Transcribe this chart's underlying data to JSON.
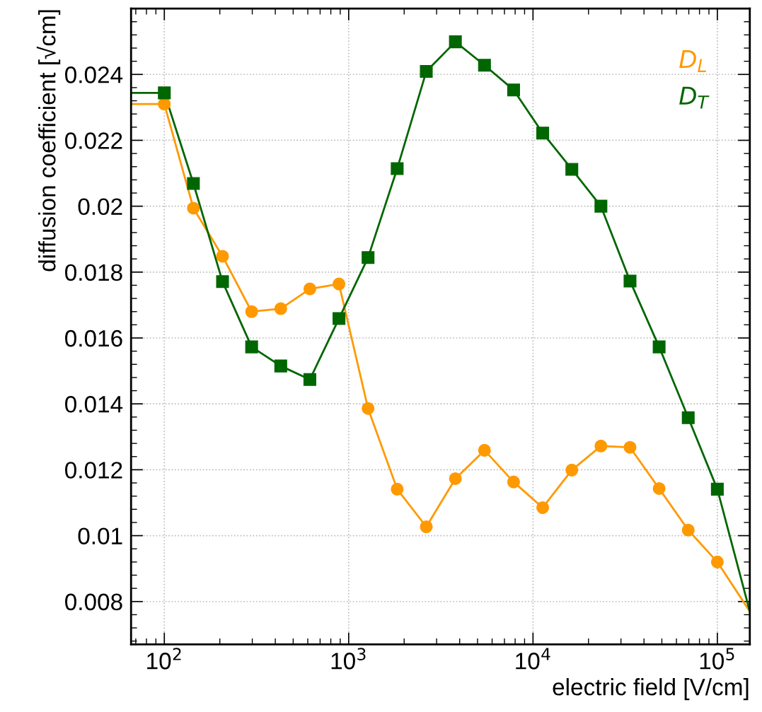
{
  "chart_data": {
    "type": "scatter",
    "xlabel": "electric field [V/cm]",
    "ylabel": "diffusion coefficient [√cm]",
    "log": "x",
    "grid": true,
    "legend": "top right",
    "xlim": [
      66,
      150000
    ],
    "ylim": [
      0.0067,
      0.026
    ],
    "xticks": [
      {
        "value": 100,
        "label": "10$^{2}$"
      },
      {
        "value": 1000,
        "label": "10$^{3}$"
      },
      {
        "value": 10000,
        "label": "10$^{4}$"
      },
      {
        "value": 100000,
        "label": "10$^{5}$"
      }
    ],
    "yticks": [
      0.008,
      0.01,
      0.012,
      0.014,
      0.016,
      0.018,
      0.02,
      0.022,
      0.024
    ],
    "x": [
      100,
      143.8,
      206.9,
      297.6,
      428.1,
      615.8,
      885.9,
      1274,
      1833,
      2637,
      3793,
      5456,
      7848,
      11288,
      16238,
      23357,
      33598,
      48329,
      69519,
      100000
    ],
    "series": [
      {
        "type": "line",
        "color": "#ff9900",
        "marker": "none",
        "x": [
          66,
          100,
          143.8,
          206.9,
          297.6,
          428.1,
          615.8,
          885.9,
          1274,
          1833,
          2637,
          3793,
          5456,
          7848,
          11288,
          16238,
          23357,
          33598,
          48329,
          69519,
          100000,
          150000
        ],
        "values": [
          0.0231,
          0.0231,
          0.01994,
          0.01848,
          0.0168,
          0.01689,
          0.01749,
          0.01764,
          0.01386,
          0.01141,
          0.01027,
          0.01173,
          0.01259,
          0.01163,
          0.01085,
          0.01199,
          0.01272,
          0.01268,
          0.01143,
          0.01017,
          0.0092,
          0.0077
        ]
      },
      {
        "type": "line",
        "color": "#006600",
        "marker": "none",
        "x": [
          66,
          100,
          143.8,
          206.9,
          297.6,
          428.1,
          615.8,
          885.9,
          1274,
          1833,
          2637,
          3793,
          5456,
          7848,
          11288,
          16238,
          23357,
          33598,
          48329,
          69519,
          100000,
          150000
        ],
        "values": [
          0.02344,
          0.02344,
          0.02069,
          0.01771,
          0.01573,
          0.01515,
          0.01474,
          0.01659,
          0.01844,
          0.02114,
          0.02409,
          0.02499,
          0.02428,
          0.02353,
          0.02222,
          0.02112,
          0.02,
          0.01773,
          0.01573,
          0.01358,
          0.01141,
          0.0077
        ]
      },
      {
        "name": "D$_{L}$",
        "color": "#ff9900",
        "marker": "circle",
        "values": [
          0.0231,
          0.01994,
          0.01848,
          0.0168,
          0.01689,
          0.01749,
          0.01764,
          0.01386,
          0.01141,
          0.01027,
          0.01173,
          0.01259,
          0.01163,
          0.01085,
          0.01199,
          0.01272,
          0.01268,
          0.01143,
          0.01017,
          0.0092
        ]
      },
      {
        "name": "D$_{T}$",
        "color": "#006600",
        "marker": "square",
        "values": [
          0.02344,
          0.02069,
          0.01771,
          0.01573,
          0.01515,
          0.01474,
          0.01659,
          0.01844,
          0.02114,
          0.02409,
          0.02499,
          0.02428,
          0.02353,
          0.02222,
          0.02112,
          0.02,
          0.01773,
          0.01573,
          0.01358,
          0.01141
        ]
      }
    ]
  }
}
